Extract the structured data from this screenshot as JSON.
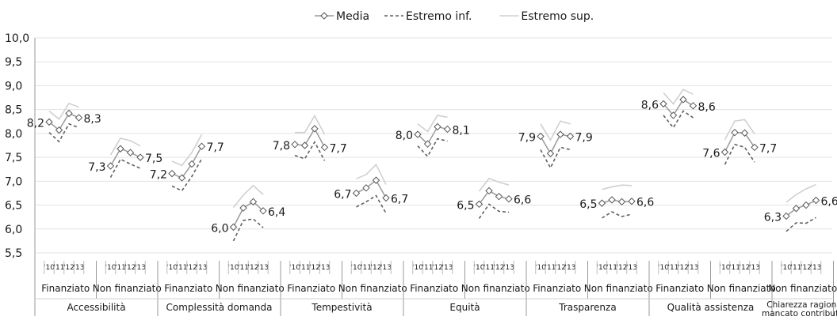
{
  "chart_data": {
    "type": "line",
    "legend": {
      "placement": "top-center",
      "entries": [
        {
          "key": "media",
          "label": "Media",
          "color": "#9a9a9a",
          "style": "solid-diamond"
        },
        {
          "key": "inf",
          "label": "Estremo inf.",
          "color": "#606060",
          "style": "dashed"
        },
        {
          "key": "sup",
          "label": "Estremo sup.",
          "color": "#d0d0d0",
          "style": "solid"
        }
      ]
    },
    "y_axis": {
      "min": 5.5,
      "max": 10.0,
      "step": 0.5,
      "tick_labels": [
        "5,5",
        "6,0",
        "6,5",
        "7,0",
        "7,5",
        "8,0",
        "8,5",
        "9,0",
        "9,5",
        "10,0"
      ],
      "grid": true
    },
    "years": [
      "'10",
      "'11",
      "'12",
      "'13"
    ],
    "groups": [
      {
        "category": "Accessibilità",
        "subgroups": [
          {
            "label": "Finanziato",
            "media": [
              8.24,
              8.07,
              8.42,
              8.33
            ],
            "inf": [
              8.02,
              7.83,
              8.2,
              8.12
            ],
            "sup": [
              8.47,
              8.3,
              8.63,
              8.55
            ],
            "label_start": "8,2",
            "label_end": "8,3"
          },
          {
            "label": "Non finanziato",
            "media": [
              7.32,
              7.68,
              7.6,
              7.5
            ],
            "inf": [
              7.08,
              7.46,
              7.36,
              7.27
            ],
            "sup": [
              7.55,
              7.9,
              7.85,
              7.74
            ],
            "label_start": "7,3",
            "label_end": "7,5"
          }
        ]
      },
      {
        "category": "Complessità domanda",
        "subgroups": [
          {
            "label": "Finanziato",
            "media": [
              7.16,
              7.07,
              7.36,
              7.73
            ],
            "inf": [
              6.9,
              6.8,
              7.1,
              7.47
            ],
            "sup": [
              7.42,
              7.33,
              7.6,
              7.98
            ],
            "label_start": "7,2",
            "label_end": "7,7"
          },
          {
            "label": "Non finanziato",
            "media": [
              6.04,
              6.44,
              6.57,
              6.38
            ],
            "inf": [
              5.75,
              6.18,
              6.21,
              6.03
            ],
            "sup": [
              6.45,
              6.71,
              6.91,
              6.72
            ],
            "label_start": "6,0",
            "label_end": "6,4"
          }
        ]
      },
      {
        "category": "Tempestività",
        "subgroups": [
          {
            "label": "Finanziato",
            "media": [
              7.77,
              7.75,
              8.1,
              7.71
            ],
            "inf": [
              7.54,
              7.47,
              7.82,
              7.43
            ],
            "sup": [
              8.02,
              8.02,
              8.37,
              7.98
            ],
            "label_start": "7,8",
            "label_end": "7,7"
          },
          {
            "label": "Non finanziato",
            "media": [
              6.75,
              6.86,
              7.02,
              6.65
            ],
            "inf": [
              6.46,
              6.57,
              6.7,
              6.33
            ],
            "sup": [
              7.05,
              7.14,
              7.35,
              6.93
            ],
            "label_start": "6,7",
            "label_end": "6,7"
          }
        ]
      },
      {
        "category": "Equità",
        "subgroups": [
          {
            "label": "Finanziato",
            "media": [
              7.98,
              7.78,
              8.14,
              8.09
            ],
            "inf": [
              7.74,
              7.52,
              7.89,
              7.84
            ],
            "sup": [
              8.2,
              8.04,
              8.38,
              8.34
            ],
            "label_start": "8,0",
            "label_end": "8,1"
          },
          {
            "label": "Non finanziato",
            "media": [
              6.52,
              6.8,
              6.68,
              6.63
            ],
            "inf": [
              6.22,
              6.52,
              6.37,
              6.35
            ],
            "sup": [
              6.79,
              7.06,
              6.98,
              6.92
            ],
            "label_start": "6,5",
            "label_end": "6,6"
          }
        ]
      },
      {
        "category": "Trasparenza",
        "subgroups": [
          {
            "label": "Finanziato",
            "media": [
              7.94,
              7.58,
              7.98,
              7.94
            ],
            "inf": [
              7.66,
              7.28,
              7.71,
              7.66
            ],
            "sup": [
              8.2,
              7.86,
              8.26,
              8.2
            ],
            "label_start": "7,9",
            "label_end": "7,9"
          },
          {
            "label": "Non finanziato",
            "media": [
              6.54,
              6.61,
              6.57,
              6.58
            ],
            "inf": [
              6.23,
              6.36,
              6.26,
              6.31
            ],
            "sup": [
              6.83,
              6.88,
              6.92,
              6.91
            ],
            "label_start": "6,5",
            "label_end": "6,6"
          }
        ]
      },
      {
        "category": "Qualità assistenza",
        "subgroups": [
          {
            "label": "Finanziato",
            "media": [
              8.62,
              8.38,
              8.71,
              8.58
            ],
            "inf": [
              8.38,
              8.12,
              8.47,
              8.33
            ],
            "sup": [
              8.85,
              8.62,
              8.92,
              8.82
            ],
            "label_start": "8,6",
            "label_end": "8,6"
          },
          {
            "label": "Non finanziato",
            "media": [
              7.61,
              8.02,
              8.01,
              7.71
            ],
            "inf": [
              7.35,
              7.77,
              7.71,
              7.4
            ],
            "sup": [
              7.87,
              8.26,
              8.29,
              7.99
            ],
            "label_start": "7,6",
            "label_end": "7,7"
          }
        ]
      },
      {
        "category": "Chiarezza ragioni mancato contributo",
        "category_lines": [
          "Chiarezza ragioni",
          "mancato contributo"
        ],
        "subgroups": [
          {
            "label": "Non finanziato",
            "media": [
              6.27,
              6.43,
              6.5,
              6.6
            ],
            "inf": [
              5.95,
              6.13,
              6.12,
              6.24
            ],
            "sup": [
              6.56,
              6.72,
              6.84,
              6.93
            ],
            "label_start": "6,3",
            "label_end": "6,6"
          }
        ]
      }
    ]
  }
}
